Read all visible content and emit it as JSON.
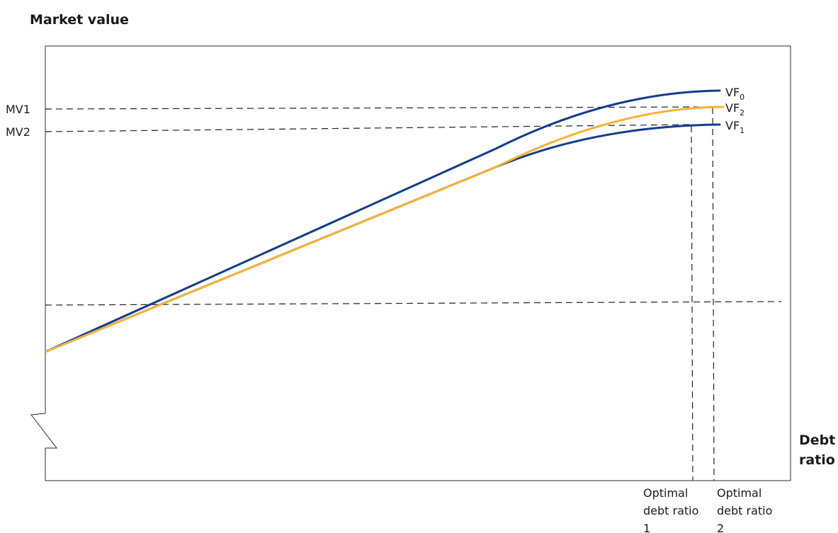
{
  "y_axis_title": "Market value",
  "x_axis_title": [
    "Debt",
    "ratio"
  ],
  "y_ticks": {
    "mv1": "MV1",
    "mv2": "MV2"
  },
  "x_ticks": {
    "optimal1": [
      "Optimal",
      "debt ratio",
      "1"
    ],
    "optimal2": [
      "Optimal",
      "debt ratio",
      "2"
    ]
  },
  "curves": {
    "vf0": {
      "base": "VF",
      "sub": "0",
      "color": "#123c8c"
    },
    "vf1": {
      "base": "VF",
      "sub": "1",
      "color": "#123c8c"
    },
    "vf2": {
      "base": "VF",
      "sub": "2",
      "color": "#f5b335"
    }
  }
}
